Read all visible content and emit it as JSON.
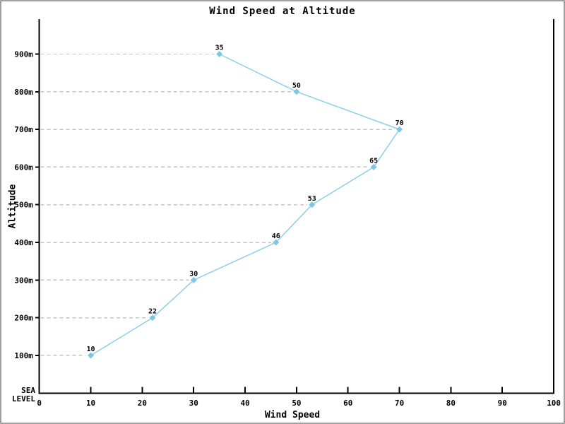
{
  "chart_data": {
    "type": "line",
    "title": "Wind Speed at Altitude",
    "xlabel": "Wind Speed",
    "ylabel": "Altitude",
    "baseline_label": "SEA\nLEVEL",
    "x_ticks": [
      0,
      10,
      20,
      30,
      40,
      50,
      60,
      70,
      80,
      90,
      100
    ],
    "xlim": [
      0,
      100
    ],
    "ylim_m": [
      0,
      900
    ],
    "grid": "dashed-horizontal-from-axis-to-point",
    "legend_position": "none",
    "marker": "diamond",
    "points": [
      {
        "altitude_m": 100,
        "altitude_label": "100m",
        "speed": 10
      },
      {
        "altitude_m": 200,
        "altitude_label": "200m",
        "speed": 22
      },
      {
        "altitude_m": 300,
        "altitude_label": "300m",
        "speed": 30
      },
      {
        "altitude_m": 400,
        "altitude_label": "400m",
        "speed": 46
      },
      {
        "altitude_m": 500,
        "altitude_label": "500m",
        "speed": 53
      },
      {
        "altitude_m": 600,
        "altitude_label": "600m",
        "speed": 65
      },
      {
        "altitude_m": 700,
        "altitude_label": "700m",
        "speed": 70
      },
      {
        "altitude_m": 800,
        "altitude_label": "800m",
        "speed": 50
      },
      {
        "altitude_m": 900,
        "altitude_label": "900m",
        "speed": 35
      }
    ],
    "colors": {
      "line": "#8ccfe9",
      "marker": "#7cc7e4",
      "grid": "#c4c4c4",
      "axis": "#000000",
      "text": "#000000",
      "frame_border": "#a0a0a0",
      "background": "#ffffff"
    }
  }
}
